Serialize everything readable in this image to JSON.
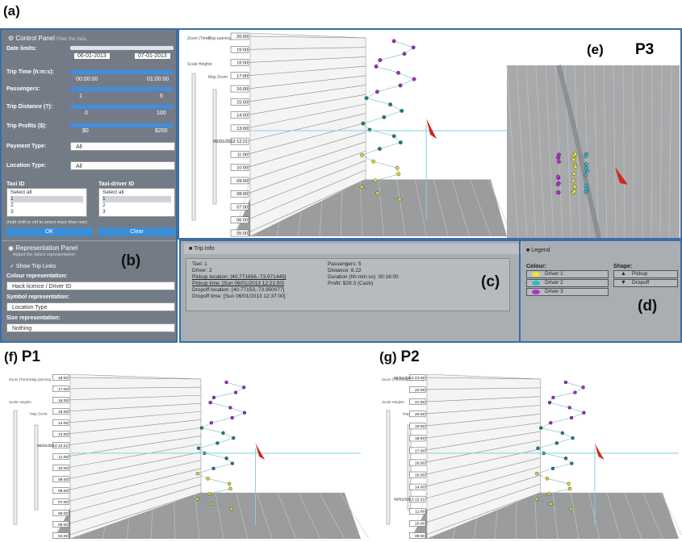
{
  "labels": {
    "a": "(a)",
    "b": "(b)",
    "c": "(c)",
    "d": "(d)",
    "e": "(e)",
    "e_name": "P3",
    "f": "(f)",
    "f_name": "P1",
    "g": "(g)",
    "g_name": "P2"
  },
  "control_panel": {
    "title": "Control Panel",
    "subtitle": "Filter the data",
    "date_label": "Date limits:",
    "date_from": "06-01-2013",
    "date_to": "07-01-2013",
    "time_label": "Trip Time (h:m:s):",
    "time_from": "00:00:00",
    "time_to": "01:00:00",
    "passengers_label": "Passengers:",
    "passengers_from": "1",
    "passengers_to": "6",
    "distance_label": "Trip Distance (?):",
    "distance_from": "0",
    "distance_to": "100",
    "profits_label": "Trip Profits ($):",
    "profits_from": "$0",
    "profits_to": "$200",
    "payment_label": "Payment Type:",
    "payment_value": "All",
    "location_label": "Location Type:",
    "location_value": "All",
    "taxi_label": "Taxi ID",
    "taxi_options": [
      "Select all",
      "1",
      "2",
      "3"
    ],
    "driver_label": "Taxi-driver ID",
    "driver_options": [
      "Select all",
      "1",
      "2",
      "3"
    ],
    "hint": "(hold shift or ctrl to select more than one)",
    "ok": "OK",
    "clear": "Clear"
  },
  "representation_panel": {
    "title": "Representation Panel",
    "subtitle": "Adjust the data's representation",
    "show_links": "Show Trip Links",
    "colour_label": "Colour representation:",
    "colour_value": "Hack licence / Driver ID",
    "symbol_label": "Symbol representation:",
    "symbol_value": "Location Type",
    "size_label": "Size representation:",
    "size_value": "Nothing"
  },
  "trip_info": {
    "title": "Trip Info",
    "left": [
      "Taxi: 1",
      "Driver: 2",
      "Pickup location: [40.771656,-73.971445]",
      "Pickup time: [Sun 06/01/2013 12:21:00]",
      "Dropoff location: [40.77153,-73.950077]",
      "Dropoff time: [Sun 06/01/2013 12:37:00]"
    ],
    "right": [
      "Passengers: 5",
      "Distance: 8.22",
      "Duration (hh:mm:ss): 00:16:00",
      "Profit: $29.3 (Cash)"
    ]
  },
  "legend": {
    "title": "Legend",
    "colour_label": "Colour:",
    "drivers": [
      "Driver 1",
      "Driver 2",
      "Driver 3"
    ],
    "shape_label": "Shape:",
    "shapes": [
      "Pickup",
      "Dropoff"
    ]
  },
  "view_controls": {
    "zoom": "Zoom (Time)",
    "panning": "Map panning",
    "scale": "Scale Heights",
    "map_zoom": "Map Zoom"
  },
  "view_p3": {
    "times": [
      "20:00",
      "19:00",
      "18:00",
      "17:00",
      "16:00",
      "15:00",
      "14:00",
      "13:00",
      "06/01/2013 12:21",
      "11:00",
      "10:00",
      "09:00",
      "08:00",
      "07:00",
      "06:00",
      "05:00"
    ]
  },
  "view_p1": {
    "times": [
      "18:00",
      "17:00",
      "16:00",
      "15:00",
      "14:00",
      "13:00",
      "06/01/2013 12:21",
      "11:00",
      "10:00",
      "09:00",
      "08:00",
      "07:00",
      "06:00",
      "05:00",
      "04:00"
    ]
  },
  "view_p2": {
    "times": [
      "06/01/2013 23:00",
      "22:00",
      "21:00",
      "20:00",
      "19:00",
      "18:00",
      "17:00",
      "16:00",
      "15:00",
      "14:00",
      "06/01/2013 12:21",
      "11:00",
      "10:00",
      "09:00"
    ]
  }
}
